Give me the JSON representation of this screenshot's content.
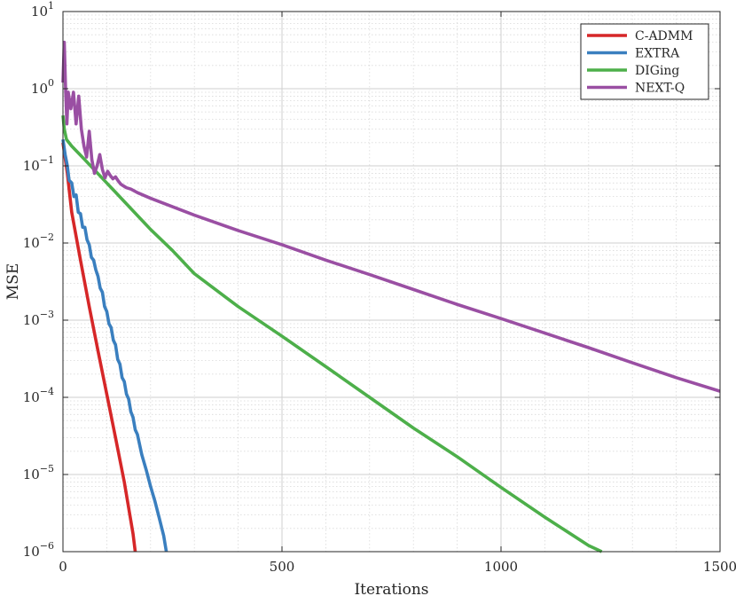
{
  "chart_data": {
    "type": "line",
    "xlabel": "Iterations",
    "ylabel": "MSE",
    "xlim": [
      0,
      1500
    ],
    "ylim": [
      1e-06,
      10
    ],
    "y_scale": "log",
    "grid": true,
    "minor_grid": true,
    "legend_position": "top-right",
    "x_ticks": [
      {
        "value": 0,
        "label": "0"
      },
      {
        "value": 500,
        "label": "500"
      },
      {
        "value": 1000,
        "label": "1000"
      },
      {
        "value": 1500,
        "label": "1500"
      }
    ],
    "y_ticks": [
      {
        "value": 10,
        "base": "10",
        "exp": "1"
      },
      {
        "value": 1,
        "base": "10",
        "exp": "0"
      },
      {
        "value": 0.1,
        "base": "10",
        "exp": "−1"
      },
      {
        "value": 0.01,
        "base": "10",
        "exp": "−2"
      },
      {
        "value": 0.001,
        "base": "10",
        "exp": "−3"
      },
      {
        "value": 0.0001,
        "base": "10",
        "exp": "−4"
      },
      {
        "value": 1e-05,
        "base": "10",
        "exp": "−5"
      },
      {
        "value": 1e-06,
        "base": "10",
        "exp": "−6"
      }
    ],
    "series": [
      {
        "name": "C-ADMM",
        "color": "#d62728",
        "x": [
          0,
          10,
          20,
          40,
          60,
          80,
          100,
          120,
          140,
          160,
          165
        ],
        "y": [
          0.2,
          0.08,
          0.025,
          0.006,
          0.0015,
          0.0004,
          0.00011,
          3e-05,
          8e-06,
          1.7e-06,
          1e-06
        ]
      },
      {
        "name": "EXTRA",
        "color": "#3a7fbf",
        "x": [
          0,
          5,
          10,
          14,
          20,
          25,
          30,
          35,
          40,
          45,
          50,
          55,
          60,
          65,
          70,
          75,
          80,
          85,
          90,
          95,
          100,
          105,
          110,
          115,
          120,
          125,
          130,
          135,
          140,
          145,
          150,
          155,
          160,
          165,
          170,
          180,
          190,
          200,
          210,
          220,
          230,
          236
        ],
        "y": [
          0.22,
          0.14,
          0.1,
          0.065,
          0.06,
          0.04,
          0.042,
          0.025,
          0.024,
          0.016,
          0.016,
          0.011,
          0.0095,
          0.0065,
          0.006,
          0.0045,
          0.0037,
          0.0026,
          0.0023,
          0.0015,
          0.0013,
          0.0009,
          0.0008,
          0.00055,
          0.00048,
          0.00031,
          0.00027,
          0.00018,
          0.00016,
          0.00011,
          9.5e-05,
          6.5e-05,
          5.5e-05,
          3.8e-05,
          3.3e-05,
          1.8e-05,
          1.15e-05,
          7e-06,
          4.5e-06,
          2.7e-06,
          1.6e-06,
          1e-06
        ]
      },
      {
        "name": "DIGing",
        "color": "#4daf4a",
        "x": [
          0,
          3,
          8,
          20,
          50,
          100,
          150,
          200,
          250,
          300,
          400,
          500,
          600,
          700,
          800,
          900,
          1000,
          1100,
          1200,
          1230
        ],
        "y": [
          0.45,
          0.3,
          0.22,
          0.18,
          0.12,
          0.06,
          0.03,
          0.015,
          0.008,
          0.004,
          0.0015,
          0.00062,
          0.00025,
          0.0001,
          4e-05,
          1.7e-05,
          6.8e-06,
          2.8e-06,
          1.2e-06,
          1e-06
        ]
      },
      {
        "name": "NEXT-Q",
        "color": "#9a4fa3",
        "x": [
          0,
          3,
          6,
          9,
          12,
          18,
          24,
          30,
          36,
          42,
          48,
          54,
          60,
          66,
          72,
          78,
          84,
          90,
          96,
          102,
          108,
          114,
          120,
          126,
          132,
          138,
          145,
          155,
          170,
          200,
          300,
          400,
          500,
          600,
          700,
          800,
          900,
          1000,
          1100,
          1200,
          1300,
          1400,
          1500
        ],
        "y": [
          1.2,
          4.0,
          1.0,
          0.35,
          0.9,
          0.55,
          0.9,
          0.35,
          0.8,
          0.3,
          0.18,
          0.13,
          0.28,
          0.12,
          0.08,
          0.1,
          0.14,
          0.09,
          0.07,
          0.085,
          0.075,
          0.068,
          0.072,
          0.064,
          0.058,
          0.055,
          0.052,
          0.05,
          0.045,
          0.038,
          0.023,
          0.0145,
          0.0095,
          0.006,
          0.0039,
          0.0025,
          0.0016,
          0.00105,
          0.00068,
          0.00044,
          0.00028,
          0.00018,
          0.00012
        ]
      }
    ]
  }
}
